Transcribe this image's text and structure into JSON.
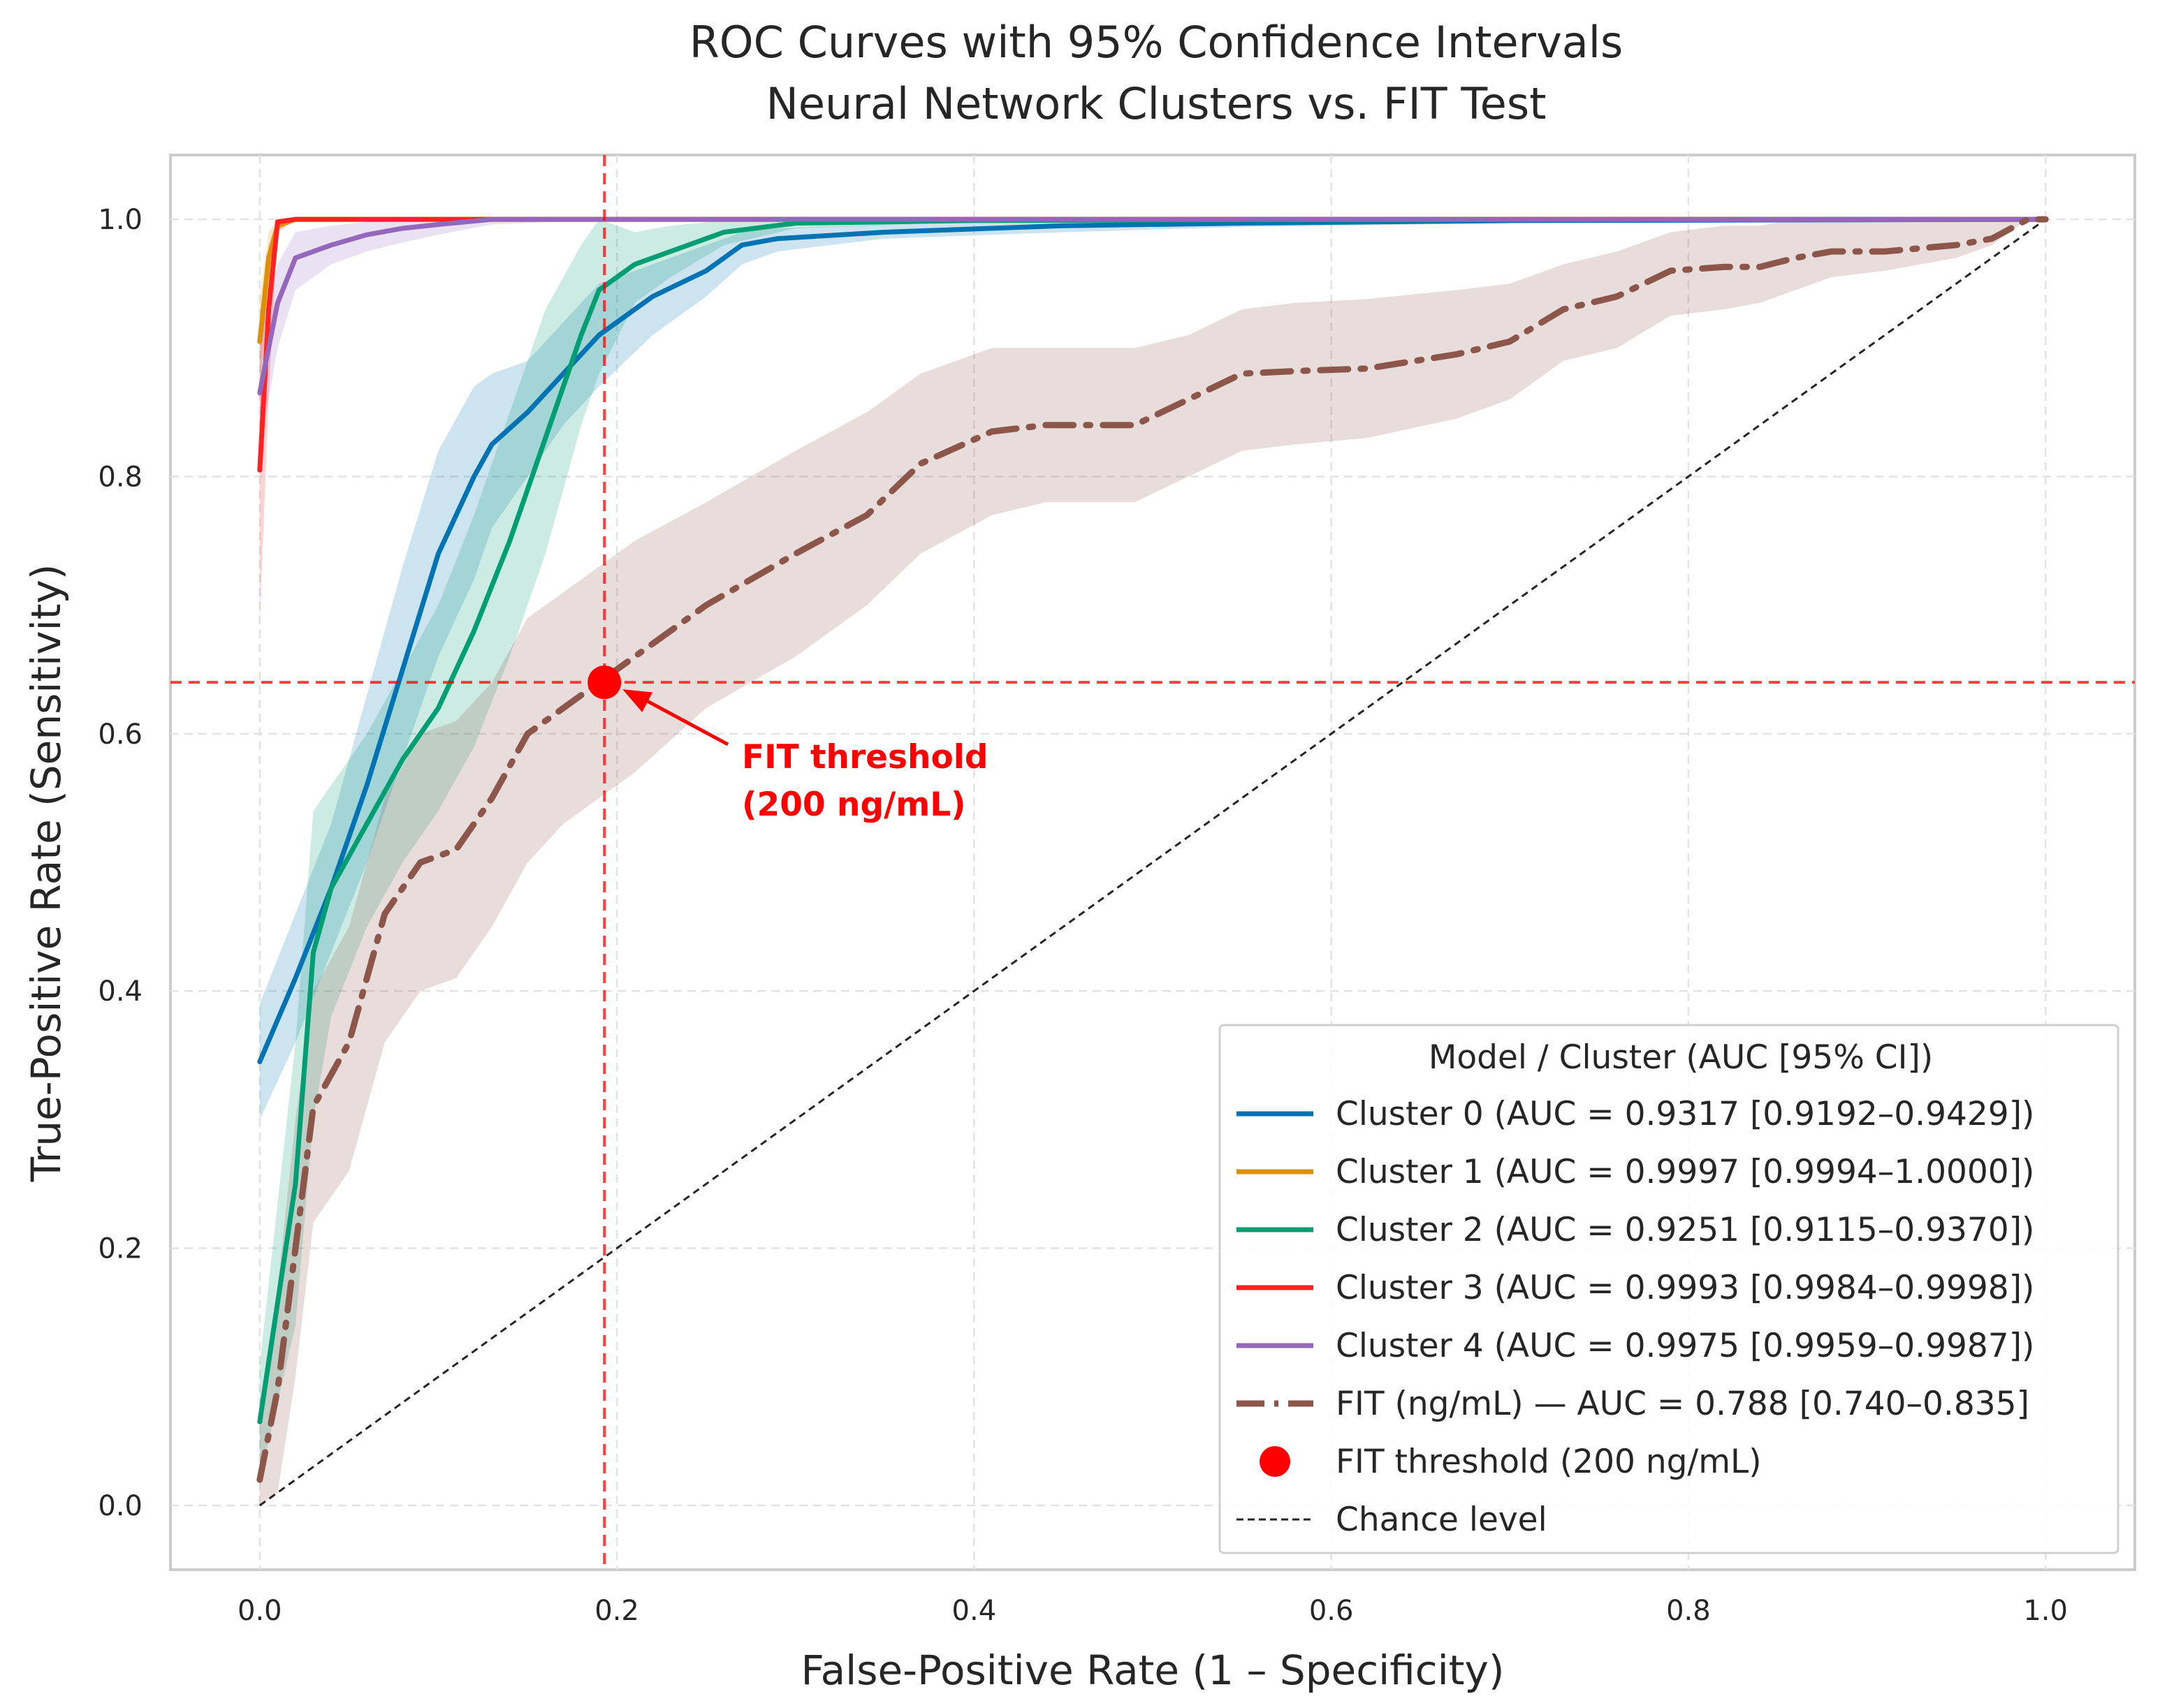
{
  "chart_data": {
    "type": "line",
    "title": "ROC Curves with 95% Confidence Intervals",
    "subtitle": "Neural Network Clusters vs. FIT Test",
    "xlabel": "False-Positive Rate (1 – Specificity)",
    "ylabel": "True-Positive Rate (Sensitivity)",
    "xlim": [
      -0.05,
      1.05
    ],
    "ylim": [
      -0.05,
      1.05
    ],
    "x_ticks": [
      "0.0",
      "0.2",
      "0.4",
      "0.6",
      "0.8",
      "1.0"
    ],
    "y_ticks": [
      "0.0",
      "0.2",
      "0.4",
      "0.6",
      "0.8",
      "1.0"
    ],
    "grid": true,
    "legend_position": "lower-right",
    "legend_title": "Model / Cluster (AUC [95% CI])",
    "series": [
      {
        "name": "Cluster 0 (AUC = 0.9317 [0.9192–0.9429])",
        "color": "#0173b2",
        "style": "solid",
        "x": [
          0,
          0.02,
          0.04,
          0.06,
          0.08,
          0.1,
          0.12,
          0.13,
          0.15,
          0.17,
          0.19,
          0.22,
          0.25,
          0.27,
          0.29,
          0.35,
          0.45,
          0.55,
          0.7,
          1.0
        ],
        "y": [
          0.345,
          0.41,
          0.48,
          0.56,
          0.65,
          0.74,
          0.8,
          0.825,
          0.85,
          0.88,
          0.91,
          0.94,
          0.96,
          0.98,
          0.985,
          0.99,
          0.995,
          0.997,
          0.999,
          1.0
        ],
        "ci_lower": [
          0.3,
          0.36,
          0.43,
          0.5,
          0.58,
          0.66,
          0.72,
          0.76,
          0.8,
          0.84,
          0.87,
          0.91,
          0.94,
          0.965,
          0.975,
          0.985,
          0.99,
          0.994,
          0.997,
          1.0
        ],
        "ci_upper": [
          0.39,
          0.46,
          0.53,
          0.63,
          0.73,
          0.82,
          0.87,
          0.88,
          0.89,
          0.92,
          0.95,
          0.965,
          0.98,
          0.99,
          0.993,
          0.996,
          0.998,
          0.999,
          1.0,
          1.0
        ]
      },
      {
        "name": "Cluster 1 (AUC = 0.9997 [0.9994–1.0000])",
        "color": "#de8f05",
        "style": "solid",
        "x": [
          0,
          0.005,
          0.01,
          0.02,
          0.05,
          1.0
        ],
        "y": [
          0.905,
          0.97,
          0.995,
          1.0,
          1.0,
          1.0
        ],
        "ci_lower": [
          0.87,
          0.95,
          0.99,
          1.0,
          1.0,
          1.0
        ],
        "ci_upper": [
          0.94,
          0.99,
          1.0,
          1.0,
          1.0,
          1.0
        ]
      },
      {
        "name": "Cluster 2 (AUC = 0.9251 [0.9115–0.9370])",
        "color": "#029e73",
        "style": "solid",
        "x": [
          0,
          0.02,
          0.03,
          0.04,
          0.06,
          0.08,
          0.1,
          0.12,
          0.14,
          0.16,
          0.18,
          0.19,
          0.21,
          0.23,
          0.26,
          0.3,
          0.4,
          0.6,
          1.0
        ],
        "y": [
          0.065,
          0.25,
          0.43,
          0.48,
          0.53,
          0.58,
          0.62,
          0.68,
          0.75,
          0.83,
          0.91,
          0.945,
          0.965,
          0.975,
          0.99,
          0.997,
          0.999,
          1.0,
          1.0
        ],
        "ci_lower": [
          0.02,
          0.14,
          0.3,
          0.38,
          0.45,
          0.5,
          0.54,
          0.59,
          0.66,
          0.74,
          0.84,
          0.88,
          0.935,
          0.955,
          0.98,
          0.993,
          0.998,
          1.0,
          1.0
        ],
        "ci_upper": [
          0.11,
          0.36,
          0.54,
          0.56,
          0.6,
          0.65,
          0.7,
          0.77,
          0.85,
          0.93,
          0.98,
          1.0,
          0.99,
          0.995,
          0.999,
          1.0,
          1.0,
          1.0,
          1.0
        ]
      },
      {
        "name": "Cluster 3 (AUC = 0.9993 [0.9984–0.9998])",
        "color": "#ff2222",
        "style": "solid",
        "x": [
          0,
          0.005,
          0.01,
          0.02,
          0.1,
          1.0
        ],
        "y": [
          0.805,
          0.93,
          0.998,
          1.0,
          1.0,
          1.0
        ],
        "ci_lower": [
          0.69,
          0.86,
          0.99,
          1.0,
          1.0,
          1.0
        ],
        "ci_upper": [
          0.92,
          0.98,
          1.0,
          1.0,
          1.0,
          1.0
        ]
      },
      {
        "name": "Cluster 4 (AUC = 0.9975 [0.9959–0.9987])",
        "color": "#9467bd",
        "style": "solid",
        "x": [
          0,
          0.01,
          0.02,
          0.04,
          0.06,
          0.08,
          0.1,
          0.13,
          0.2,
          1.0
        ],
        "y": [
          0.865,
          0.935,
          0.97,
          0.98,
          0.988,
          0.993,
          0.996,
          1.0,
          1.0,
          1.0
        ],
        "ci_lower": [
          0.82,
          0.9,
          0.945,
          0.965,
          0.975,
          0.982,
          0.988,
          0.996,
          1.0,
          1.0
        ],
        "ci_upper": [
          0.91,
          0.965,
          0.99,
          0.995,
          0.998,
          1.0,
          1.0,
          1.0,
          1.0,
          1.0
        ]
      },
      {
        "name": "FIT (ng/mL) — AUC = 0.788 [0.740–0.835]",
        "color": "#8c564b",
        "style": "dashdot",
        "x": [
          0,
          0.01,
          0.02,
          0.03,
          0.05,
          0.07,
          0.09,
          0.11,
          0.13,
          0.15,
          0.17,
          0.19,
          0.21,
          0.25,
          0.3,
          0.34,
          0.37,
          0.41,
          0.44,
          0.49,
          0.52,
          0.55,
          0.58,
          0.62,
          0.67,
          0.7,
          0.73,
          0.76,
          0.79,
          0.82,
          0.84,
          0.86,
          0.88,
          0.91,
          0.95,
          0.97,
          0.99,
          1.0
        ],
        "y": [
          0.02,
          0.09,
          0.2,
          0.31,
          0.36,
          0.46,
          0.5,
          0.51,
          0.55,
          0.6,
          0.62,
          0.64,
          0.66,
          0.7,
          0.74,
          0.77,
          0.81,
          0.835,
          0.84,
          0.84,
          0.86,
          0.88,
          0.882,
          0.884,
          0.895,
          0.905,
          0.93,
          0.94,
          0.96,
          0.963,
          0.963,
          0.97,
          0.975,
          0.975,
          0.98,
          0.985,
          1.0,
          1.0
        ],
        "ci_lower": [
          0.0,
          0.01,
          0.1,
          0.22,
          0.26,
          0.36,
          0.4,
          0.41,
          0.45,
          0.5,
          0.53,
          0.55,
          0.57,
          0.62,
          0.66,
          0.7,
          0.74,
          0.77,
          0.78,
          0.78,
          0.8,
          0.82,
          0.825,
          0.83,
          0.845,
          0.86,
          0.89,
          0.9,
          0.925,
          0.93,
          0.935,
          0.945,
          0.955,
          0.96,
          0.97,
          0.98,
          1.0,
          1.0
        ],
        "ci_upper": [
          0.08,
          0.17,
          0.3,
          0.4,
          0.45,
          0.55,
          0.6,
          0.61,
          0.64,
          0.69,
          0.71,
          0.73,
          0.75,
          0.78,
          0.82,
          0.85,
          0.88,
          0.9,
          0.9,
          0.9,
          0.91,
          0.93,
          0.935,
          0.938,
          0.945,
          0.95,
          0.965,
          0.975,
          0.99,
          0.995,
          0.995,
          1.0,
          1.0,
          1.0,
          1.0,
          1.0,
          1.0,
          1.0
        ]
      }
    ],
    "threshold_point": {
      "label": "FIT threshold (200 ng/mL)",
      "x": 0.193,
      "y": 0.64,
      "color": "#ff0000"
    },
    "annotation": {
      "lines": [
        "FIT threshold",
        "(200 ng/mL)"
      ],
      "text_x": 0.27,
      "text_y": 0.57,
      "color": "#ff0000"
    },
    "chance_line": {
      "label": "Chance level",
      "x": [
        0,
        1
      ],
      "y": [
        0,
        1
      ],
      "color": "#262626"
    }
  }
}
